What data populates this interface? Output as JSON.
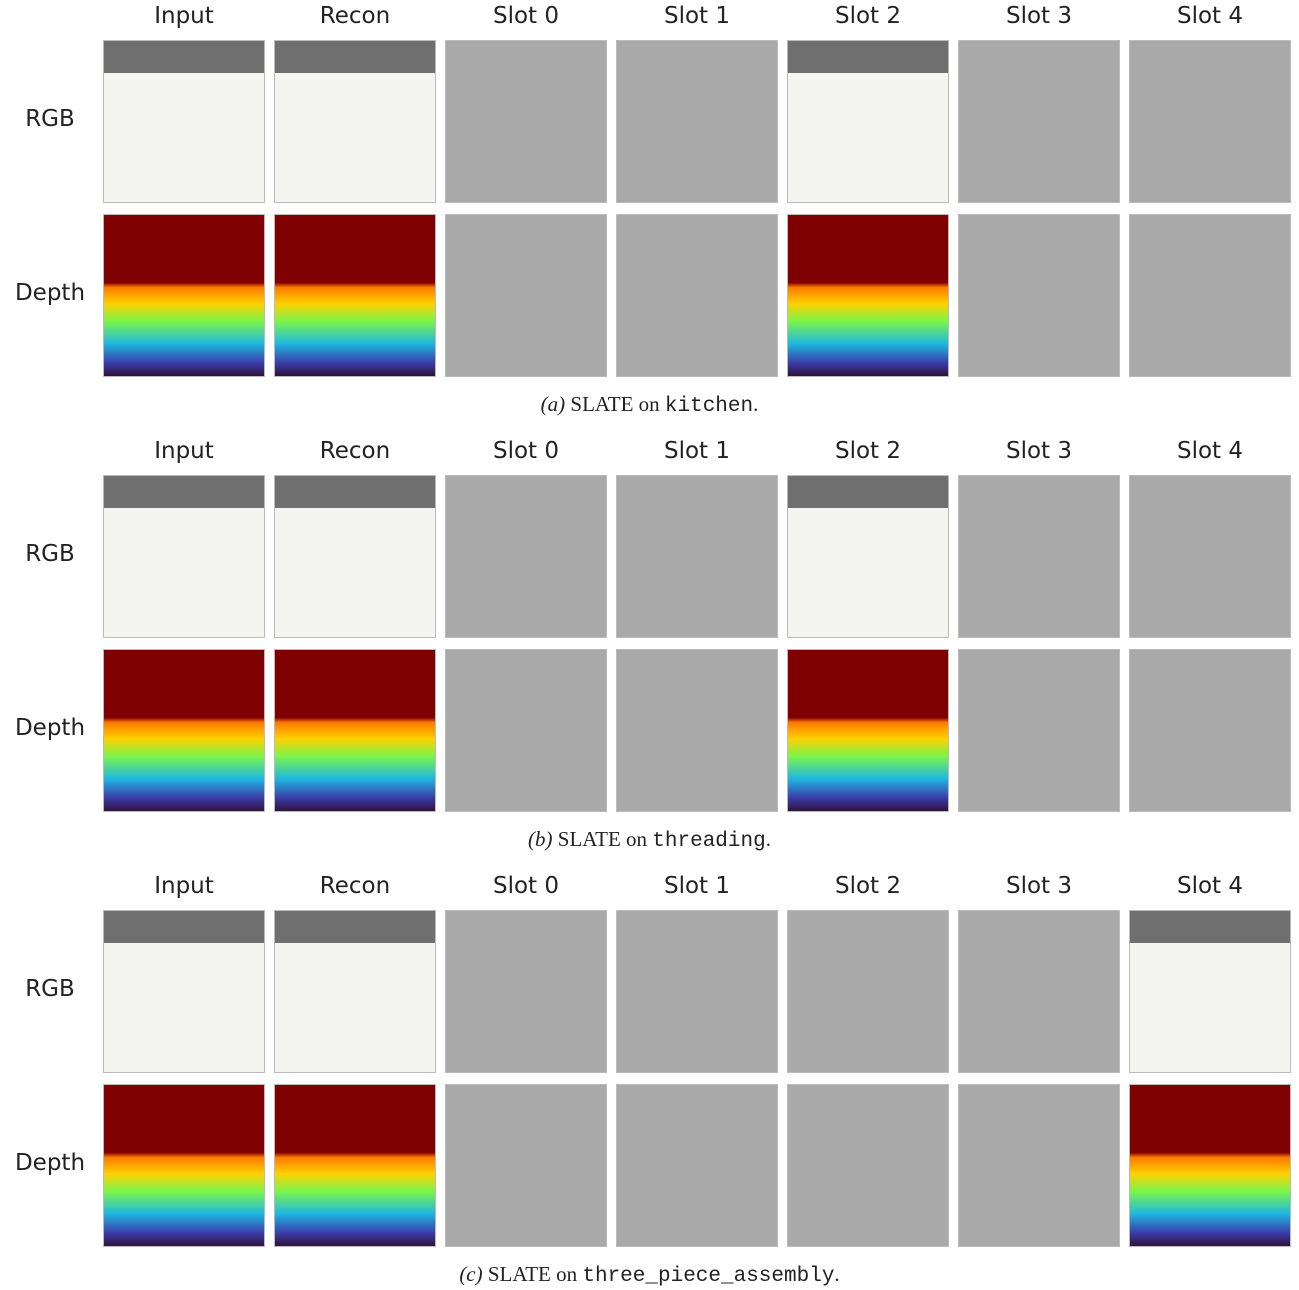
{
  "panels": [
    {
      "columns": [
        "Input",
        "Recon",
        "Slot 0",
        "Slot 1",
        "Slot 2",
        "Slot 3",
        "Slot 4"
      ],
      "rows": [
        "RGB",
        "Depth"
      ],
      "caption": {
        "label": "(a)",
        "text": "SLATE on",
        "dataset": "kitchen",
        "end": "."
      }
    },
    {
      "columns": [
        "Input",
        "Recon",
        "Slot 0",
        "Slot 1",
        "Slot 2",
        "Slot 3",
        "Slot 4"
      ],
      "rows": [
        "RGB",
        "Depth"
      ],
      "caption": {
        "label": "(b)",
        "text": "SLATE on",
        "dataset": "threading",
        "end": "."
      }
    },
    {
      "columns": [
        "Input",
        "Recon",
        "Slot 0",
        "Slot 1",
        "Slot 2",
        "Slot 3",
        "Slot 4"
      ],
      "rows": [
        "RGB",
        "Depth"
      ],
      "caption": {
        "label": "(c)",
        "text": "SLATE on",
        "dataset": "three_piece_assembly",
        "end": "."
      }
    }
  ]
}
